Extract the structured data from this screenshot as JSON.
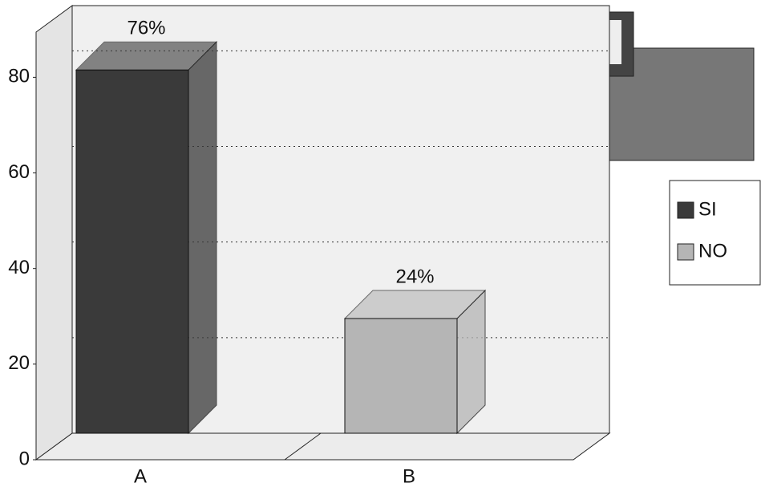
{
  "chart_data": {
    "type": "bar3d",
    "categories": [
      "A",
      "B"
    ],
    "series": [
      {
        "name": "SI",
        "color": "#3a3a3a",
        "values": [
          76,
          null
        ],
        "value_labels": [
          "76%",
          null
        ]
      },
      {
        "name": "NO",
        "color": "#b5b5b5",
        "values": [
          null,
          24
        ],
        "value_labels": [
          null,
          "24%"
        ]
      }
    ],
    "ylim": [
      0,
      95
    ],
    "yticks": [
      0,
      20,
      40,
      60,
      80
    ],
    "grid": true,
    "legend": "right"
  }
}
